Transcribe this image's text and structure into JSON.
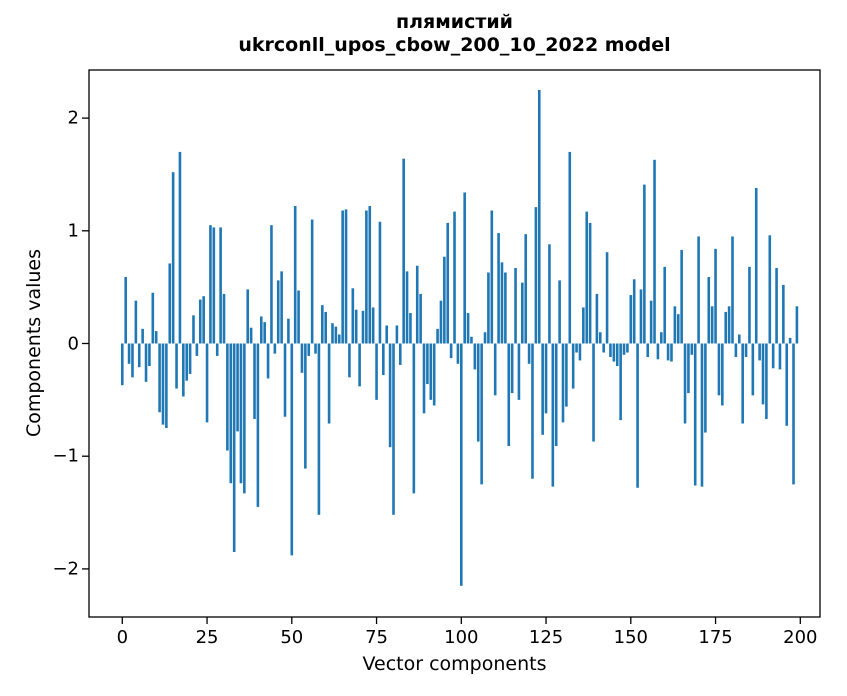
{
  "title": {
    "line1": "плямистий",
    "line2": "ukrconll_upos_cbow_200_10_2022 model"
  },
  "axes": {
    "xlabel": "Vector components",
    "ylabel": "Components values"
  },
  "colors": {
    "bar": "#1f77b4",
    "axis": "#000000",
    "background": "#ffffff",
    "text": "#000000"
  },
  "chart_data": {
    "type": "bar",
    "title": "плямистий\nukrconll_upos_cbow_200_10_2022 model",
    "xlabel": "Vector components",
    "ylabel": "Components values",
    "n_components": 200,
    "x_start": 0,
    "x_ticks": [
      0,
      25,
      50,
      75,
      100,
      125,
      150,
      175,
      200
    ],
    "y_ticks": [
      -2,
      -1,
      0,
      1,
      2
    ],
    "xlim": [
      -10,
      209
    ],
    "ylim": [
      -2.43,
      2.43
    ],
    "grid": false,
    "legend": null,
    "values": [
      -0.37,
      0.59,
      -0.18,
      -0.3,
      0.38,
      -0.21,
      0.13,
      -0.34,
      -0.2,
      0.45,
      0.11,
      -0.61,
      -0.72,
      -0.75,
      0.71,
      1.52,
      -0.4,
      1.7,
      -0.47,
      -0.33,
      -0.27,
      0.25,
      -0.11,
      0.39,
      0.42,
      -0.7,
      1.05,
      1.03,
      -0.11,
      1.03,
      0.44,
      -0.95,
      -1.24,
      -1.85,
      -0.78,
      -1.24,
      -1.33,
      0.48,
      0.14,
      -0.67,
      -1.45,
      0.24,
      0.19,
      -0.31,
      1.05,
      -0.09,
      0.56,
      0.64,
      -0.65,
      0.22,
      -1.88,
      1.22,
      0.47,
      -0.26,
      -1.11,
      -0.11,
      1.1,
      -0.09,
      -1.52,
      0.34,
      0.28,
      -0.71,
      0.18,
      0.15,
      0.08,
      1.18,
      1.19,
      -0.3,
      0.49,
      0.3,
      -0.38,
      0.29,
      1.18,
      1.22,
      0.32,
      -0.5,
      1.08,
      -0.28,
      0.16,
      -0.92,
      -1.52,
      0.16,
      -0.19,
      1.64,
      0.64,
      0.27,
      -1.33,
      0.69,
      0.44,
      -0.62,
      -0.36,
      -0.5,
      -0.55,
      0.13,
      0.38,
      0.77,
      1.07,
      -0.13,
      1.17,
      -0.18,
      -2.15,
      1.34,
      0.27,
      0.06,
      -0.23,
      -0.87,
      -1.25,
      0.1,
      0.63,
      1.18,
      -0.46,
      0.98,
      0.72,
      0.63,
      -0.91,
      -0.44,
      0.67,
      -0.5,
      0.54,
      0.97,
      -0.18,
      -1.2,
      1.21,
      2.25,
      -0.81,
      -0.62,
      0.88,
      -1.27,
      -0.91,
      0.56,
      -0.7,
      -0.56,
      1.7,
      -0.4,
      -0.08,
      -0.15,
      0.32,
      1.17,
      1.07,
      -0.87,
      0.44,
      0.1,
      -0.08,
      0.81,
      -0.12,
      -0.16,
      -0.2,
      -0.68,
      -0.1,
      -0.08,
      0.43,
      0.57,
      -1.28,
      0.48,
      1.41,
      -0.12,
      0.38,
      1.63,
      -0.14,
      0.1,
      0.68,
      -0.15,
      -0.16,
      0.33,
      0.26,
      0.83,
      -0.71,
      -0.44,
      -0.1,
      -1.26,
      0.95,
      -1.27,
      -0.79,
      0.59,
      0.33,
      0.84,
      -0.46,
      -0.55,
      0.28,
      0.33,
      0.95,
      -0.12,
      0.08,
      -0.71,
      -0.12,
      0.68,
      -0.46,
      1.38,
      -0.15,
      -0.54,
      -0.67,
      0.96,
      -0.22,
      0.67,
      -0.23,
      0.52,
      -0.73,
      0.05,
      -1.25,
      0.33
    ]
  }
}
